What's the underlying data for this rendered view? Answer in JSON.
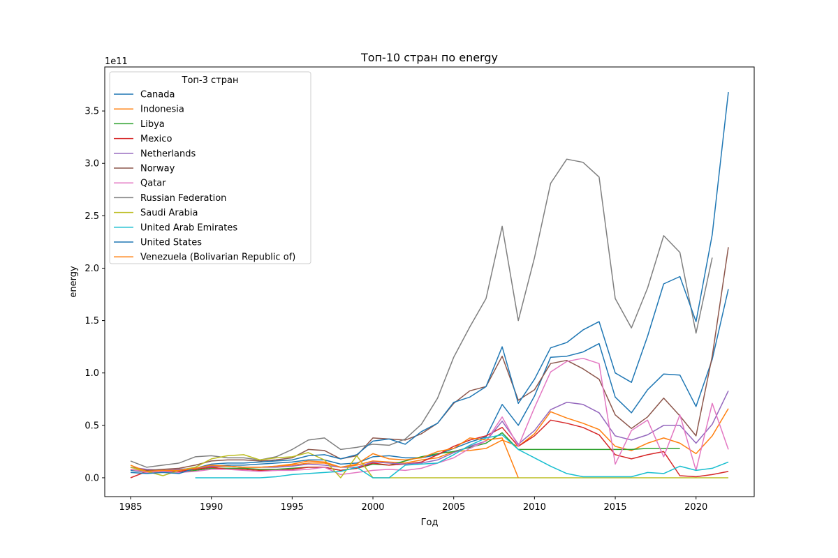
{
  "chart_data": {
    "type": "line",
    "title": "Топ-10 стран по energy",
    "xlabel": "Год",
    "ylabel": "energy",
    "y_offset_label": "1e11",
    "y_scale": 100000000000,
    "xlim": [
      1983.4,
      2023.6
    ],
    "ylim": [
      -0.18,
      3.92
    ],
    "x_ticks": [
      1985,
      1990,
      1995,
      2000,
      2005,
      2010,
      2015,
      2020
    ],
    "x_tick_labels": [
      "1985",
      "1990",
      "1995",
      "2000",
      "2005",
      "2010",
      "2015",
      "2020"
    ],
    "y_ticks": [
      0,
      0.5,
      1.0,
      1.5,
      2.0,
      2.5,
      3.0,
      3.5
    ],
    "y_tick_labels": [
      "0.0",
      "0.5",
      "1.0",
      "1.5",
      "2.0",
      "2.5",
      "3.0",
      "3.5"
    ],
    "legend": {
      "title": "Топ-3 стран",
      "placement": "upper-left"
    },
    "grid": false,
    "series": [
      {
        "name": "Canada",
        "color": "#1f77b4",
        "x": [
          1985,
          1986,
          1987,
          1988,
          1989,
          1990,
          1991,
          1992,
          1993,
          1994,
          1995,
          1996,
          1997,
          1998,
          1999,
          2000,
          2001,
          2002,
          2003,
          2004,
          2005,
          2006,
          2007,
          2008,
          2009,
          2010,
          2011,
          2012,
          2013,
          2014,
          2015,
          2016,
          2017,
          2018,
          2019,
          2020,
          2021,
          2022
        ],
        "y": [
          0.07,
          0.05,
          0.06,
          0.08,
          0.09,
          0.11,
          0.12,
          0.12,
          0.13,
          0.14,
          0.15,
          0.17,
          0.17,
          0.13,
          0.14,
          0.2,
          0.21,
          0.19,
          0.19,
          0.22,
          0.28,
          0.34,
          0.39,
          0.7,
          0.5,
          0.78,
          1.15,
          1.16,
          1.2,
          1.28,
          0.77,
          0.62,
          0.84,
          0.99,
          0.98,
          0.68,
          1.13,
          1.8
        ]
      },
      {
        "name": "Indonesia",
        "color": "#ff7f0e",
        "x": [
          1985,
          1986,
          1987,
          1988,
          1989,
          1990,
          1991,
          1992,
          1993,
          1994,
          1995,
          1996,
          1997,
          1998,
          1999,
          2000,
          2001,
          2002,
          2003,
          2004,
          2005,
          2006,
          2007,
          2008,
          2009,
          2010,
          2011,
          2012,
          2013,
          2014,
          2015,
          2016,
          2017,
          2018,
          2019,
          2020,
          2021,
          2022
        ],
        "y": [
          0.08,
          0.06,
          0.07,
          0.07,
          0.08,
          0.1,
          0.11,
          0.1,
          0.1,
          0.11,
          0.12,
          0.14,
          0.14,
          0.1,
          0.12,
          0.16,
          0.15,
          0.14,
          0.17,
          0.19,
          0.25,
          0.26,
          0.28,
          0.36,
          0.3,
          0.42,
          0.63,
          0.57,
          0.52,
          0.46,
          0.3,
          0.26,
          0.33,
          0.38,
          0.33,
          0.23,
          0.4,
          0.66
        ]
      },
      {
        "name": "Libya",
        "color": "#2ca02c",
        "x": [
          1985,
          1986,
          1987,
          1988,
          1989,
          1990,
          1991,
          1992,
          1993,
          1994,
          1995,
          1996,
          1997,
          1998,
          1999,
          2000,
          2001,
          2002,
          2003,
          2004,
          2005,
          2006,
          2007,
          2008,
          2009,
          2010,
          2011,
          2012,
          2013,
          2014,
          2015,
          2016,
          2017,
          2018,
          2019
        ],
        "y": [
          0.08,
          0.05,
          0.06,
          0.05,
          0.07,
          0.09,
          0.09,
          0.09,
          0.08,
          0.08,
          0.09,
          0.1,
          0.1,
          0.07,
          0.09,
          0.13,
          0.12,
          0.16,
          0.2,
          0.23,
          0.25,
          0.29,
          0.33,
          0.43,
          0.27,
          0.27,
          0.27,
          0.27,
          0.27,
          0.27,
          0.27,
          0.27,
          0.28,
          0.28,
          0.28
        ]
      },
      {
        "name": "Mexico",
        "color": "#d62728",
        "x": [
          1985,
          1986,
          1987,
          1988,
          1989,
          1990,
          1991,
          1992,
          1993,
          1994,
          1995,
          1996,
          1997,
          1998,
          1999,
          2000,
          2001,
          2002,
          2003,
          2004,
          2005,
          2006,
          2007,
          2008,
          2009,
          2010,
          2011,
          2012,
          2013,
          2014,
          2015,
          2016,
          2017,
          2018,
          2019,
          2020,
          2021,
          2022
        ],
        "y": [
          0.0,
          0.06,
          0.07,
          0.06,
          0.08,
          0.1,
          0.08,
          0.08,
          0.07,
          0.07,
          0.08,
          0.1,
          0.1,
          0.07,
          0.09,
          0.14,
          0.12,
          0.13,
          0.15,
          0.22,
          0.3,
          0.36,
          0.4,
          0.48,
          0.3,
          0.4,
          0.55,
          0.52,
          0.48,
          0.41,
          0.22,
          0.18,
          0.22,
          0.25,
          0.02,
          0.01,
          0.03,
          0.06
        ]
      },
      {
        "name": "Netherlands",
        "color": "#9467bd",
        "x": [
          1985,
          1986,
          1987,
          1988,
          1989,
          1990,
          1991,
          1992,
          1993,
          1994,
          1995,
          1996,
          1997,
          1998,
          1999,
          2000,
          2001,
          2002,
          2003,
          2004,
          2005,
          2006,
          2007,
          2008,
          2009,
          2010,
          2011,
          2012,
          2013,
          2014,
          2015,
          2016,
          2017,
          2018,
          2019,
          2020,
          2021,
          2022
        ],
        "y": [
          0.1,
          0.08,
          0.07,
          0.08,
          0.09,
          0.11,
          0.11,
          0.1,
          0.1,
          0.1,
          0.11,
          0.13,
          0.12,
          0.1,
          0.1,
          0.15,
          0.14,
          0.13,
          0.14,
          0.17,
          0.24,
          0.3,
          0.35,
          0.54,
          0.32,
          0.45,
          0.65,
          0.72,
          0.7,
          0.62,
          0.4,
          0.36,
          0.41,
          0.5,
          0.5,
          0.33,
          0.51,
          0.83
        ]
      },
      {
        "name": "Norway",
        "color": "#8c564b",
        "x": [
          1985,
          1986,
          1987,
          1988,
          1989,
          1990,
          1991,
          1992,
          1993,
          1994,
          1995,
          1996,
          1997,
          1998,
          1999,
          2000,
          2001,
          2002,
          2003,
          2004,
          2005,
          2006,
          2007,
          2008,
          2009,
          2010,
          2011,
          2012,
          2013,
          2014,
          2015,
          2016,
          2017,
          2018,
          2019,
          2020,
          2021,
          2022
        ],
        "y": [
          0.1,
          0.07,
          0.08,
          0.09,
          0.12,
          0.16,
          0.17,
          0.17,
          0.16,
          0.17,
          0.19,
          0.27,
          0.26,
          0.18,
          0.21,
          0.38,
          0.37,
          0.36,
          0.42,
          0.52,
          0.71,
          0.83,
          0.87,
          1.16,
          0.74,
          0.84,
          1.09,
          1.12,
          1.04,
          0.94,
          0.6,
          0.47,
          0.58,
          0.76,
          0.59,
          0.4,
          1.16,
          2.2
        ]
      },
      {
        "name": "Qatar",
        "color": "#e377c2",
        "x": [
          1985,
          1986,
          1987,
          1988,
          1989,
          1990,
          1991,
          1992,
          1993,
          1994,
          1995,
          1996,
          1997,
          1998,
          1999,
          2000,
          2001,
          2002,
          2003,
          2004,
          2005,
          2006,
          2007,
          2008,
          2009,
          2010,
          2011,
          2012,
          2013,
          2014,
          2015,
          2016,
          2017,
          2018,
          2019,
          2020,
          2021,
          2022
        ],
        "y": [
          0.08,
          0.05,
          0.06,
          0.05,
          0.06,
          0.08,
          0.08,
          0.07,
          0.06,
          0.07,
          0.07,
          0.08,
          0.1,
          0.03,
          0.05,
          0.07,
          0.08,
          0.07,
          0.09,
          0.14,
          0.19,
          0.28,
          0.35,
          0.58,
          0.3,
          0.67,
          1.01,
          1.11,
          1.14,
          1.09,
          0.13,
          0.45,
          0.55,
          0.2,
          0.6,
          0.07,
          0.71,
          0.27
        ]
      },
      {
        "name": "Russian Federation",
        "color": "#7f7f7f",
        "x": [
          1985,
          1986,
          1987,
          1988,
          1989,
          1990,
          1991,
          1992,
          1993,
          1994,
          1995,
          1996,
          1997,
          1998,
          1999,
          2000,
          2001,
          2002,
          2003,
          2004,
          2005,
          2006,
          2007,
          2008,
          2009,
          2010,
          2011,
          2012,
          2013,
          2014,
          2015,
          2016,
          2017,
          2018,
          2019,
          2020,
          2021
        ],
        "y": [
          0.16,
          0.1,
          0.12,
          0.14,
          0.2,
          0.21,
          0.19,
          0.19,
          0.17,
          0.2,
          0.27,
          0.36,
          0.38,
          0.27,
          0.29,
          0.32,
          0.31,
          0.37,
          0.51,
          0.76,
          1.15,
          1.44,
          1.71,
          2.4,
          1.5,
          2.1,
          2.81,
          3.04,
          3.01,
          2.87,
          1.71,
          1.43,
          1.81,
          2.31,
          2.15,
          1.38,
          2.1
        ]
      },
      {
        "name": "Saudi Arabia",
        "color": "#bcbd22",
        "x": [
          1985,
          1986,
          1987,
          1988,
          1989,
          1990,
          1991,
          1992,
          1993,
          1994,
          1995,
          1996,
          1997,
          1998,
          1999,
          2000,
          2001,
          2002,
          2003,
          2004,
          2005,
          2006,
          2007,
          2008,
          2009,
          2010,
          2011,
          2012,
          2013,
          2014,
          2015,
          2016,
          2017,
          2018,
          2019,
          2020,
          2021,
          2022
        ],
        "y": [
          0.1,
          0.06,
          0.02,
          0.07,
          0.1,
          0.18,
          0.21,
          0.22,
          0.17,
          0.19,
          0.2,
          0.24,
          0.17,
          0.0,
          0.21,
          0.0,
          0.0,
          0.0,
          0.0,
          0.0,
          0.0,
          0.0,
          0.0,
          0.0,
          0.0,
          0.0,
          0.0,
          0.0,
          0.0,
          0.0,
          0.0,
          0.0,
          0.0,
          0.0,
          0.0,
          0.0,
          0.0,
          0.0
        ]
      },
      {
        "name": "United Arab Emirates",
        "color": "#17becf",
        "x": [
          1989,
          1990,
          1991,
          1992,
          1993,
          1994,
          1995,
          1996,
          1997,
          1998,
          1999,
          2000,
          2001,
          2002,
          2003,
          2004,
          2005,
          2006,
          2007,
          2008,
          2009,
          2010,
          2011,
          2012,
          2013,
          2014,
          2015,
          2016,
          2017,
          2018,
          2019,
          2020,
          2021,
          2022
        ],
        "y": [
          0.0,
          0.0,
          0.0,
          0.0,
          0.0,
          0.01,
          0.03,
          0.04,
          0.05,
          0.06,
          0.1,
          0.0,
          0.0,
          0.12,
          0.13,
          0.14,
          0.22,
          0.31,
          0.38,
          0.41,
          0.27,
          0.19,
          0.11,
          0.04,
          0.01,
          0.01,
          0.01,
          0.01,
          0.05,
          0.04,
          0.11,
          0.07,
          0.09,
          0.15
        ]
      },
      {
        "name": "United States",
        "color": "#1f77b4",
        "x": [
          1985,
          1986,
          1987,
          1988,
          1989,
          1990,
          1991,
          1992,
          1993,
          1994,
          1995,
          1996,
          1997,
          1998,
          1999,
          2000,
          2001,
          2002,
          2003,
          2004,
          2005,
          2006,
          2007,
          2008,
          2009,
          2010,
          2011,
          2012,
          2013,
          2014,
          2015,
          2016,
          2017,
          2018,
          2019,
          2020,
          2021,
          2022
        ],
        "y": [
          0.05,
          0.04,
          0.05,
          0.04,
          0.09,
          0.13,
          0.14,
          0.14,
          0.15,
          0.16,
          0.17,
          0.21,
          0.22,
          0.18,
          0.22,
          0.35,
          0.37,
          0.32,
          0.44,
          0.52,
          0.72,
          0.77,
          0.87,
          1.25,
          0.71,
          0.94,
          1.24,
          1.29,
          1.41,
          1.49,
          1.0,
          0.91,
          1.35,
          1.85,
          1.92,
          1.49,
          2.32,
          3.68
        ]
      },
      {
        "name": "Venezuela (Bolivarian Republic of)",
        "color": "#ff7f0e",
        "x": [
          1985,
          1986,
          1987,
          1988,
          1989,
          1990,
          1991,
          1992,
          1993,
          1994,
          1995,
          1996,
          1997,
          1998,
          1999,
          2000,
          2001,
          2002,
          2003,
          2004,
          2005,
          2006,
          2007,
          2008,
          2009
        ],
        "y": [
          0.12,
          0.06,
          0.07,
          0.07,
          0.09,
          0.12,
          0.11,
          0.1,
          0.1,
          0.11,
          0.13,
          0.16,
          0.15,
          0.1,
          0.13,
          0.23,
          0.18,
          0.17,
          0.19,
          0.25,
          0.28,
          0.38,
          0.36,
          0.38,
          0.0
        ]
      }
    ]
  }
}
